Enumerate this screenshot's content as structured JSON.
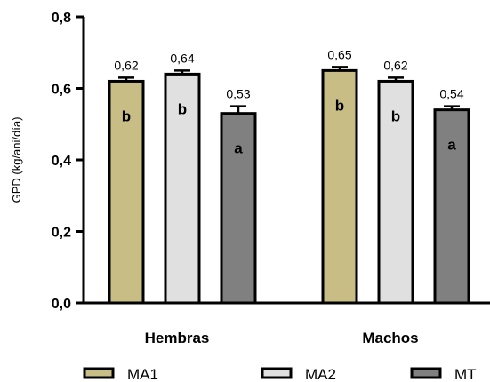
{
  "chart_data": {
    "type": "bar",
    "ylabel": "GPD (kg/ani/día)",
    "ylim": [
      0,
      0.8
    ],
    "y_ticks": [
      "0,0",
      "0,2",
      "0,4",
      "0,6",
      "0,8"
    ],
    "y_tick_values": [
      0,
      0.2,
      0.4,
      0.6,
      0.8
    ],
    "categories": [
      "Hembras",
      "Machos"
    ],
    "series": [
      {
        "name": "MA1",
        "color": "#c8bd84",
        "values": [
          0.62,
          0.65
        ],
        "errors": [
          0.01,
          0.01
        ],
        "value_labels": [
          "0,62",
          "0,65"
        ],
        "letters": [
          "b",
          "b"
        ]
      },
      {
        "name": "MA2",
        "color": "#e0e0e0",
        "values": [
          0.64,
          0.62
        ],
        "errors": [
          0.01,
          0.01
        ],
        "value_labels": [
          "0,64",
          "0,62"
        ],
        "letters": [
          "b",
          "b"
        ]
      },
      {
        "name": "MT",
        "color": "#808080",
        "values": [
          0.53,
          0.54
        ],
        "errors": [
          0.02,
          0.01
        ],
        "value_labels": [
          "0,53",
          "0,54"
        ],
        "letters": [
          "a",
          "a"
        ]
      }
    ],
    "legend_position": "bottom",
    "grid": false
  }
}
